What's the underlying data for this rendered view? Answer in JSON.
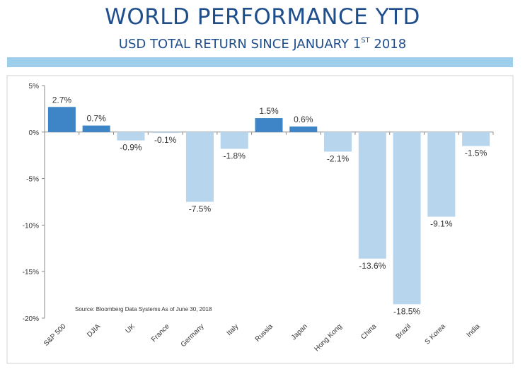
{
  "header": {
    "title": "WORLD PERFORMANCE YTD",
    "subtitle_main": "USD TOTAL RETURN SINCE JANUARY 1",
    "subtitle_sup": "ST",
    "subtitle_year": " 2018",
    "band_color": "#9fcdec"
  },
  "chart_data": {
    "type": "bar",
    "categories": [
      "S&P 500",
      "DJIA",
      "UK",
      "France",
      "Germany",
      "Italy",
      "Russia",
      "Japan",
      "Hong Kong",
      "China",
      "Brazil",
      "S Korea",
      "India"
    ],
    "values": [
      2.7,
      0.7,
      -0.9,
      -0.1,
      -7.5,
      -1.8,
      1.5,
      0.6,
      -2.1,
      -13.6,
      -18.5,
      -9.1,
      -1.5
    ],
    "data_labels": [
      "2.7%",
      "0.7%",
      "-0.9%",
      "-0.1%",
      "-7.5%",
      "-1.8%",
      "1.5%",
      "0.6%",
      "-2.1%",
      "-13.6%",
      "-18.5%",
      "-9.1%",
      "-1.5%"
    ],
    "ylim": [
      -20,
      5
    ],
    "yticks": [
      5,
      0,
      -5,
      -10,
      -15,
      -20
    ],
    "ytick_labels": [
      "5%",
      "0%",
      "-5%",
      "-10%",
      "-15%",
      "-20%"
    ],
    "positive_color": "#3d85c6",
    "negative_color": "#b7d5ec",
    "grid": false,
    "source_note": "Source:  Bloomberg Data Systems As of June 30, 2018"
  }
}
